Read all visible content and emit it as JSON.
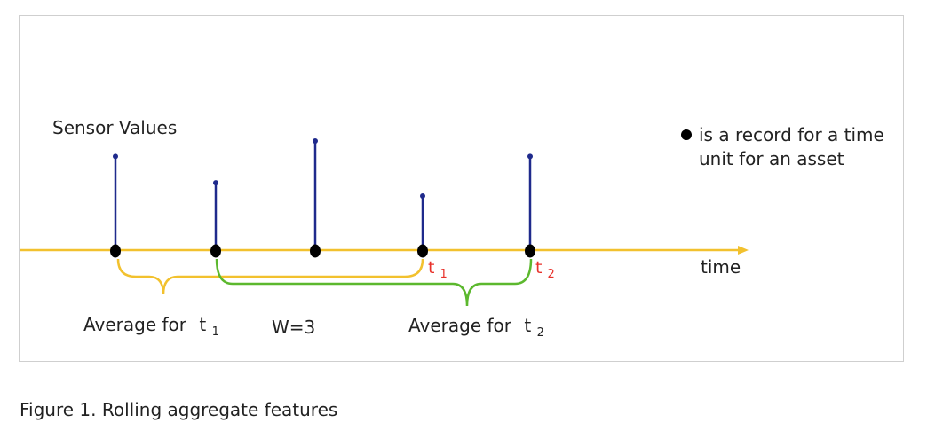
{
  "diagram": {
    "y_axis_label": "Sensor Values",
    "x_axis_label": "time",
    "legend": {
      "line1": "is a record for a time",
      "line2": "unit for an asset"
    },
    "t1_marker": {
      "base": "t",
      "sub": "1"
    },
    "t2_marker": {
      "base": "t",
      "sub": "2"
    },
    "window_label": "W=3",
    "avg_t1": {
      "prefix": "Average for",
      "base": "t",
      "sub": "1"
    },
    "avg_t2": {
      "prefix": "Average for",
      "base": "t",
      "sub": "2"
    }
  },
  "colors": {
    "axis": "#f2c12e",
    "stem": "#1f2a8c",
    "record_dot": "#000000",
    "bracket_t1": "#f2c12e",
    "bracket_t2": "#5cb82e",
    "time_marker": "#e8312a"
  },
  "records": [
    {
      "index": 1,
      "relative_value": 0.86
    },
    {
      "index": 2,
      "relative_value": 0.62
    },
    {
      "index": 3,
      "relative_value": 1.0
    },
    {
      "index": 4,
      "relative_value": 0.5
    },
    {
      "index": 5,
      "relative_value": 0.86
    }
  ],
  "caption": "Figure 1. Rolling aggregate features"
}
